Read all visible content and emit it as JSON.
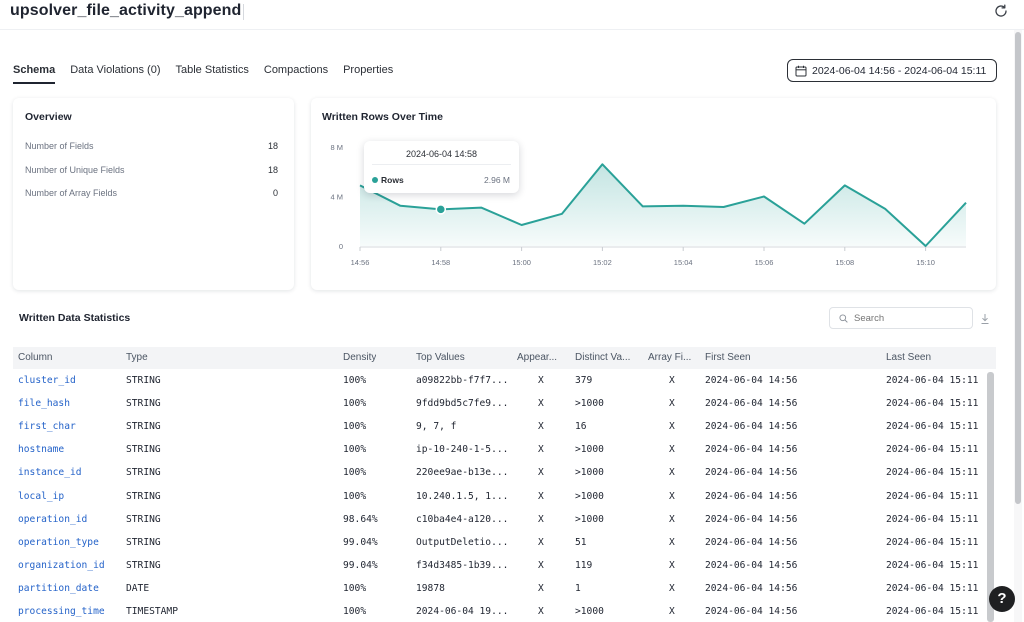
{
  "header": {
    "title": "upsolver_file_activity_append"
  },
  "tabs": [
    {
      "label": "Schema",
      "active": true
    },
    {
      "label": "Data Violations (0)",
      "active": false
    },
    {
      "label": "Table Statistics",
      "active": false
    },
    {
      "label": "Compactions",
      "active": false
    },
    {
      "label": "Properties",
      "active": false
    }
  ],
  "date_range": {
    "label": "2024-06-04 14:56 - 2024-06-04 15:11"
  },
  "overview": {
    "title": "Overview",
    "rows": [
      {
        "label": "Number of Fields",
        "value": "18"
      },
      {
        "label": "Number of Unique Fields",
        "value": "18"
      },
      {
        "label": "Number of Array Fields",
        "value": "0"
      }
    ]
  },
  "chart_data": {
    "type": "area",
    "title": "Written Rows Over Time",
    "y_ticks": [
      "8 M",
      "4 M",
      "0"
    ],
    "x_ticks": [
      "14:56",
      "14:58",
      "15:00",
      "15:02",
      "15:04",
      "15:06",
      "15:08",
      "15:10"
    ],
    "ylim": [
      0,
      8000000
    ],
    "x": [
      "14:56",
      "14:57",
      "14:58",
      "14:59",
      "15:00",
      "15:01",
      "15:02",
      "15:03",
      "15:04",
      "15:05",
      "15:06",
      "15:07",
      "15:08",
      "15:09",
      "15:10",
      "15:11"
    ],
    "series": [
      {
        "name": "Rows",
        "values": [
          4900000,
          3250000,
          2960000,
          3100000,
          1700000,
          2600000,
          6600000,
          3200000,
          3250000,
          3150000,
          4000000,
          1800000,
          4900000,
          3000000,
          0,
          3500000
        ]
      }
    ],
    "grid": false,
    "color": "#2aa198",
    "tooltip": {
      "title": "2024-06-04 14:58",
      "series": "Rows",
      "value": "2.96 M"
    }
  },
  "statistics": {
    "title": "Written Data Statistics",
    "search_placeholder": "Search",
    "columns": [
      "Column",
      "Type",
      "Density",
      "Top Values",
      "Appear...",
      "Distinct Va...",
      "Array Fi...",
      "First Seen",
      "Last Seen"
    ],
    "rows": [
      [
        "cluster_id",
        "STRING",
        "100%",
        "a09822bb-f7f7...",
        "X",
        "379",
        "X",
        "2024-06-04 14:56",
        "2024-06-04 15:11"
      ],
      [
        "file_hash",
        "STRING",
        "100%",
        "9fdd9bd5c7fe9...",
        "X",
        ">1000",
        "X",
        "2024-06-04 14:56",
        "2024-06-04 15:11"
      ],
      [
        "first_char",
        "STRING",
        "100%",
        "9, 7, f",
        "X",
        "16",
        "X",
        "2024-06-04 14:56",
        "2024-06-04 15:11"
      ],
      [
        "hostname",
        "STRING",
        "100%",
        "ip-10-240-1-5...",
        "X",
        ">1000",
        "X",
        "2024-06-04 14:56",
        "2024-06-04 15:11"
      ],
      [
        "instance_id",
        "STRING",
        "100%",
        "220ee9ae-b13e...",
        "X",
        ">1000",
        "X",
        "2024-06-04 14:56",
        "2024-06-04 15:11"
      ],
      [
        "local_ip",
        "STRING",
        "100%",
        "10.240.1.5, 1...",
        "X",
        ">1000",
        "X",
        "2024-06-04 14:56",
        "2024-06-04 15:11"
      ],
      [
        "operation_id",
        "STRING",
        "98.64%",
        "c10ba4e4-a120...",
        "X",
        ">1000",
        "X",
        "2024-06-04 14:56",
        "2024-06-04 15:11"
      ],
      [
        "operation_type",
        "STRING",
        "99.04%",
        "OutputDeletio...",
        "X",
        "51",
        "X",
        "2024-06-04 14:56",
        "2024-06-04 15:11"
      ],
      [
        "organization_id",
        "STRING",
        "99.04%",
        "f34d3485-1b39...",
        "X",
        "119",
        "X",
        "2024-06-04 14:56",
        "2024-06-04 15:11"
      ],
      [
        "partition_date",
        "DATE",
        "100%",
        "19878",
        "X",
        "1",
        "X",
        "2024-06-04 14:56",
        "2024-06-04 15:11"
      ],
      [
        "processing_time",
        "TIMESTAMP",
        "100%",
        "2024-06-04 19...",
        "X",
        ">1000",
        "X",
        "2024-06-04 14:56",
        "2024-06-04 15:11"
      ]
    ]
  },
  "help": {
    "label": "?"
  }
}
